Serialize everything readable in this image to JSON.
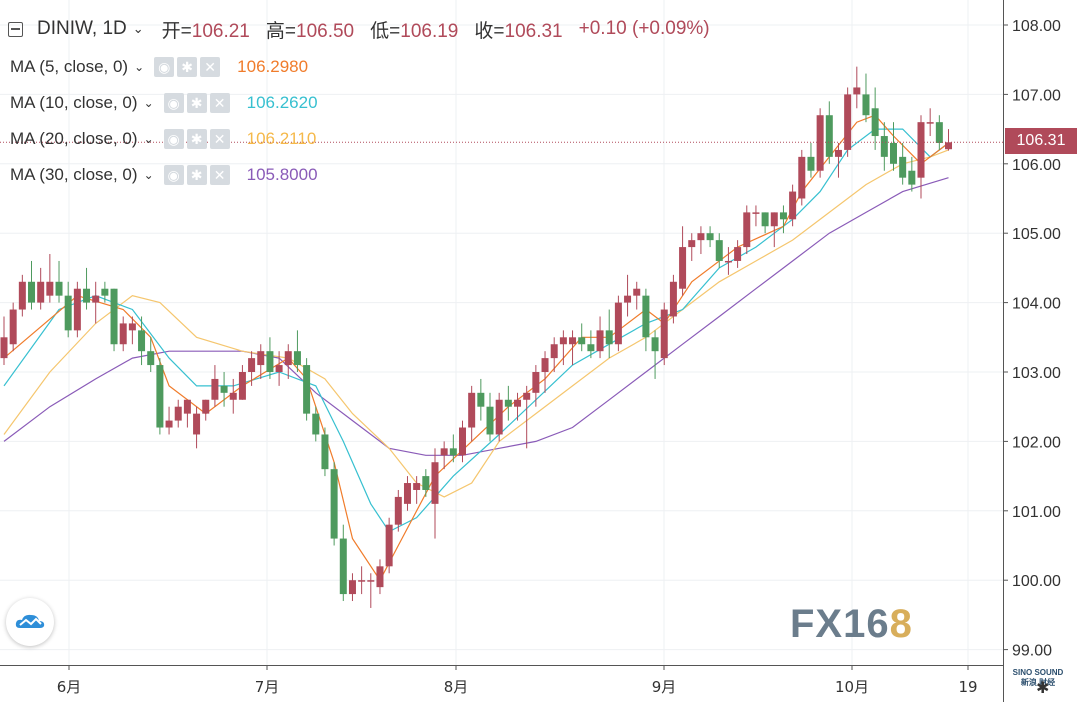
{
  "header": {
    "symbol": "DINIW, 1D",
    "open_label": "开",
    "open_value": "106.21",
    "high_label": "高",
    "high_value": "106.50",
    "low_label": "低",
    "low_value": "106.19",
    "close_label": "收",
    "close_value": "106.31",
    "change": "+0.10 (+0.09%)"
  },
  "indicators": [
    {
      "label": "MA (5, close, 0)",
      "value": "106.2980",
      "color": "#f07c2b"
    },
    {
      "label": "MA (10, close, 0)",
      "value": "106.2620",
      "color": "#37c0d0"
    },
    {
      "label": "MA (20, close, 0)",
      "value": "106.2110",
      "color": "#f5c66e"
    },
    {
      "label": "MA (30, close, 0)",
      "value": "105.8000",
      "color": "#8a5bb8"
    }
  ],
  "last_price_badge": "106.31",
  "watermark": {
    "main": "FX16",
    "accent": "8"
  },
  "corner_logo_text": [
    "SINO SOUND",
    "新浪 财经"
  ],
  "colors": {
    "up": "#b04a5a",
    "down": "#4e9a5e",
    "grid": "#eef0f3",
    "axis": "#555555"
  },
  "chart_data": {
    "type": "candlestick",
    "ylim": [
      98.85,
      108.3
    ],
    "yticks": [
      "108.00",
      "107.00",
      "106.00",
      "105.00",
      "104.00",
      "103.00",
      "102.00",
      "101.00",
      "100.00",
      "99.00"
    ],
    "xticks": [
      "6月",
      "7月",
      "8月",
      "9月",
      "10月",
      "19"
    ],
    "grid": true,
    "candles": [
      {
        "o": 103.2,
        "h": 103.8,
        "l": 103.1,
        "c": 103.5
      },
      {
        "o": 103.4,
        "h": 104.0,
        "l": 103.3,
        "c": 103.9
      },
      {
        "o": 103.9,
        "h": 104.4,
        "l": 103.8,
        "c": 104.3
      },
      {
        "o": 104.3,
        "h": 104.6,
        "l": 103.9,
        "c": 104.0
      },
      {
        "o": 104.0,
        "h": 104.5,
        "l": 103.9,
        "c": 104.3
      },
      {
        "o": 104.1,
        "h": 104.7,
        "l": 104.0,
        "c": 104.3
      },
      {
        "o": 104.3,
        "h": 104.6,
        "l": 104.0,
        "c": 104.1
      },
      {
        "o": 104.1,
        "h": 104.3,
        "l": 103.5,
        "c": 103.6
      },
      {
        "o": 103.6,
        "h": 104.3,
        "l": 103.5,
        "c": 104.2
      },
      {
        "o": 104.2,
        "h": 104.5,
        "l": 103.9,
        "c": 104.0
      },
      {
        "o": 104.0,
        "h": 104.3,
        "l": 103.7,
        "c": 104.1
      },
      {
        "o": 104.2,
        "h": 104.3,
        "l": 104.0,
        "c": 104.1
      },
      {
        "o": 104.2,
        "h": 104.2,
        "l": 103.3,
        "c": 103.4
      },
      {
        "o": 103.4,
        "h": 103.8,
        "l": 103.3,
        "c": 103.7
      },
      {
        "o": 103.6,
        "h": 103.8,
        "l": 103.4,
        "c": 103.7
      },
      {
        "o": 103.6,
        "h": 103.8,
        "l": 103.1,
        "c": 103.3
      },
      {
        "o": 103.3,
        "h": 103.5,
        "l": 103.0,
        "c": 103.1
      },
      {
        "o": 103.1,
        "h": 103.2,
        "l": 102.1,
        "c": 102.2
      },
      {
        "o": 102.2,
        "h": 102.5,
        "l": 102.1,
        "c": 102.3
      },
      {
        "o": 102.3,
        "h": 102.6,
        "l": 102.2,
        "c": 102.5
      },
      {
        "o": 102.4,
        "h": 102.6,
        "l": 102.2,
        "c": 102.6
      },
      {
        "o": 102.1,
        "h": 102.5,
        "l": 101.9,
        "c": 102.4
      },
      {
        "o": 102.4,
        "h": 102.6,
        "l": 102.3,
        "c": 102.6
      },
      {
        "o": 102.6,
        "h": 103.1,
        "l": 102.5,
        "c": 102.9
      },
      {
        "o": 102.8,
        "h": 103.0,
        "l": 102.5,
        "c": 102.7
      },
      {
        "o": 102.6,
        "h": 102.9,
        "l": 102.4,
        "c": 102.7
      },
      {
        "o": 102.6,
        "h": 103.1,
        "l": 102.6,
        "c": 103.0
      },
      {
        "o": 103.0,
        "h": 103.3,
        "l": 102.8,
        "c": 103.2
      },
      {
        "o": 103.1,
        "h": 103.4,
        "l": 102.9,
        "c": 103.3
      },
      {
        "o": 103.3,
        "h": 103.5,
        "l": 102.9,
        "c": 103.0
      },
      {
        "o": 103.0,
        "h": 103.3,
        "l": 102.8,
        "c": 103.1
      },
      {
        "o": 103.1,
        "h": 103.4,
        "l": 102.9,
        "c": 103.3
      },
      {
        "o": 103.3,
        "h": 103.6,
        "l": 103.0,
        "c": 103.1
      },
      {
        "o": 103.1,
        "h": 103.2,
        "l": 102.3,
        "c": 102.4
      },
      {
        "o": 102.4,
        "h": 102.5,
        "l": 102.0,
        "c": 102.1
      },
      {
        "o": 102.1,
        "h": 102.2,
        "l": 101.5,
        "c": 101.6
      },
      {
        "o": 101.6,
        "h": 101.7,
        "l": 100.5,
        "c": 100.6
      },
      {
        "o": 100.6,
        "h": 100.8,
        "l": 99.7,
        "c": 99.8
      },
      {
        "o": 99.8,
        "h": 100.1,
        "l": 99.7,
        "c": 100.0
      },
      {
        "o": 100.0,
        "h": 100.2,
        "l": 99.8,
        "c": 100.0
      },
      {
        "o": 100.0,
        "h": 100.1,
        "l": 99.6,
        "c": 100.0
      },
      {
        "o": 99.9,
        "h": 100.3,
        "l": 99.8,
        "c": 100.2
      },
      {
        "o": 100.2,
        "h": 100.9,
        "l": 100.1,
        "c": 100.8
      },
      {
        "o": 100.8,
        "h": 101.3,
        "l": 100.7,
        "c": 101.2
      },
      {
        "o": 101.1,
        "h": 101.5,
        "l": 101.0,
        "c": 101.4
      },
      {
        "o": 101.3,
        "h": 101.5,
        "l": 101.1,
        "c": 101.4
      },
      {
        "o": 101.5,
        "h": 101.6,
        "l": 101.2,
        "c": 101.3
      },
      {
        "o": 101.1,
        "h": 101.9,
        "l": 100.6,
        "c": 101.7
      },
      {
        "o": 101.8,
        "h": 102.0,
        "l": 101.6,
        "c": 101.9
      },
      {
        "o": 101.9,
        "h": 102.1,
        "l": 101.7,
        "c": 101.8
      },
      {
        "o": 101.8,
        "h": 102.3,
        "l": 101.7,
        "c": 102.2
      },
      {
        "o": 102.2,
        "h": 102.8,
        "l": 102.0,
        "c": 102.7
      },
      {
        "o": 102.7,
        "h": 102.9,
        "l": 102.3,
        "c": 102.5
      },
      {
        "o": 102.5,
        "h": 102.7,
        "l": 102.0,
        "c": 102.1
      },
      {
        "o": 102.1,
        "h": 102.7,
        "l": 102.0,
        "c": 102.6
      },
      {
        "o": 102.6,
        "h": 102.8,
        "l": 102.3,
        "c": 102.5
      },
      {
        "o": 102.5,
        "h": 102.7,
        "l": 102.3,
        "c": 102.6
      },
      {
        "o": 102.6,
        "h": 102.8,
        "l": 101.9,
        "c": 102.7
      },
      {
        "o": 102.7,
        "h": 103.1,
        "l": 102.5,
        "c": 103.0
      },
      {
        "o": 103.0,
        "h": 103.3,
        "l": 102.7,
        "c": 103.2
      },
      {
        "o": 103.2,
        "h": 103.5,
        "l": 103.0,
        "c": 103.4
      },
      {
        "o": 103.4,
        "h": 103.6,
        "l": 103.1,
        "c": 103.5
      },
      {
        "o": 103.4,
        "h": 103.6,
        "l": 103.1,
        "c": 103.5
      },
      {
        "o": 103.5,
        "h": 103.7,
        "l": 103.3,
        "c": 103.4
      },
      {
        "o": 103.4,
        "h": 103.6,
        "l": 103.2,
        "c": 103.3
      },
      {
        "o": 103.3,
        "h": 103.8,
        "l": 103.2,
        "c": 103.6
      },
      {
        "o": 103.6,
        "h": 103.9,
        "l": 103.2,
        "c": 103.4
      },
      {
        "o": 103.4,
        "h": 104.1,
        "l": 103.3,
        "c": 104.0
      },
      {
        "o": 104.0,
        "h": 104.4,
        "l": 103.8,
        "c": 104.1
      },
      {
        "o": 104.1,
        "h": 104.3,
        "l": 103.9,
        "c": 104.2
      },
      {
        "o": 104.1,
        "h": 104.2,
        "l": 103.3,
        "c": 103.5
      },
      {
        "o": 103.5,
        "h": 103.6,
        "l": 102.9,
        "c": 103.3
      },
      {
        "o": 103.2,
        "h": 104.0,
        "l": 103.1,
        "c": 103.9
      },
      {
        "o": 103.8,
        "h": 104.4,
        "l": 103.7,
        "c": 104.3
      },
      {
        "o": 104.2,
        "h": 105.1,
        "l": 104.1,
        "c": 104.8
      },
      {
        "o": 104.8,
        "h": 105.0,
        "l": 104.6,
        "c": 104.9
      },
      {
        "o": 104.9,
        "h": 105.1,
        "l": 104.7,
        "c": 105.0
      },
      {
        "o": 105.0,
        "h": 105.1,
        "l": 104.8,
        "c": 104.9
      },
      {
        "o": 104.9,
        "h": 105.0,
        "l": 104.5,
        "c": 104.6
      },
      {
        "o": 104.6,
        "h": 104.8,
        "l": 104.4,
        "c": 104.6
      },
      {
        "o": 104.6,
        "h": 104.9,
        "l": 104.5,
        "c": 104.8
      },
      {
        "o": 104.8,
        "h": 105.4,
        "l": 104.7,
        "c": 105.3
      },
      {
        "o": 105.3,
        "h": 105.4,
        "l": 105.1,
        "c": 105.3
      },
      {
        "o": 105.3,
        "h": 105.3,
        "l": 105.0,
        "c": 105.1
      },
      {
        "o": 105.1,
        "h": 105.3,
        "l": 104.8,
        "c": 105.3
      },
      {
        "o": 105.3,
        "h": 105.4,
        "l": 105.0,
        "c": 105.2
      },
      {
        "o": 105.2,
        "h": 105.7,
        "l": 105.1,
        "c": 105.6
      },
      {
        "o": 105.5,
        "h": 106.2,
        "l": 105.4,
        "c": 106.1
      },
      {
        "o": 106.1,
        "h": 106.3,
        "l": 105.8,
        "c": 105.9
      },
      {
        "o": 105.9,
        "h": 106.8,
        "l": 105.8,
        "c": 106.7
      },
      {
        "o": 106.7,
        "h": 106.9,
        "l": 106.0,
        "c": 106.1
      },
      {
        "o": 106.1,
        "h": 106.3,
        "l": 105.8,
        "c": 106.2
      },
      {
        "o": 106.2,
        "h": 107.1,
        "l": 106.1,
        "c": 107.0
      },
      {
        "o": 107.0,
        "h": 107.4,
        "l": 106.8,
        "c": 107.1
      },
      {
        "o": 107.0,
        "h": 107.3,
        "l": 106.6,
        "c": 106.7
      },
      {
        "o": 106.8,
        "h": 107.1,
        "l": 106.2,
        "c": 106.4
      },
      {
        "o": 106.4,
        "h": 106.6,
        "l": 105.9,
        "c": 106.1
      },
      {
        "o": 106.3,
        "h": 106.6,
        "l": 105.9,
        "c": 106.0
      },
      {
        "o": 106.1,
        "h": 106.3,
        "l": 105.7,
        "c": 105.8
      },
      {
        "o": 105.9,
        "h": 106.1,
        "l": 105.6,
        "c": 105.7
      },
      {
        "o": 105.8,
        "h": 106.7,
        "l": 105.5,
        "c": 106.6
      },
      {
        "o": 106.6,
        "h": 106.8,
        "l": 106.4,
        "c": 106.6
      },
      {
        "o": 106.6,
        "h": 106.7,
        "l": 106.2,
        "c": 106.3
      },
      {
        "o": 106.21,
        "h": 106.5,
        "l": 106.19,
        "c": 106.31
      }
    ],
    "ma5": [
      [
        0,
        103.2
      ],
      [
        8,
        104.1
      ],
      [
        13,
        103.9
      ],
      [
        16,
        103.5
      ],
      [
        18,
        102.8
      ],
      [
        22,
        102.4
      ],
      [
        26,
        102.8
      ],
      [
        31,
        103.2
      ],
      [
        33,
        102.9
      ],
      [
        36,
        101.7
      ],
      [
        38,
        100.6
      ],
      [
        41,
        100.0
      ],
      [
        43,
        100.5
      ],
      [
        47,
        101.5
      ],
      [
        51,
        102.0
      ],
      [
        55,
        102.5
      ],
      [
        59,
        102.9
      ],
      [
        63,
        103.5
      ],
      [
        66,
        103.5
      ],
      [
        70,
        103.9
      ],
      [
        72,
        103.7
      ],
      [
        75,
        104.3
      ],
      [
        80,
        104.8
      ],
      [
        85,
        105.1
      ],
      [
        87,
        105.6
      ],
      [
        90,
        106.1
      ],
      [
        93,
        106.6
      ],
      [
        95,
        106.7
      ],
      [
        97,
        106.4
      ],
      [
        100,
        106.0
      ],
      [
        103,
        106.3
      ]
    ],
    "ma10": [
      [
        0,
        102.8
      ],
      [
        6,
        103.9
      ],
      [
        10,
        104.1
      ],
      [
        14,
        103.9
      ],
      [
        18,
        103.2
      ],
      [
        21,
        102.8
      ],
      [
        25,
        102.8
      ],
      [
        30,
        103.0
      ],
      [
        34,
        102.8
      ],
      [
        37,
        102.0
      ],
      [
        40,
        101.1
      ],
      [
        42,
        100.7
      ],
      [
        45,
        100.9
      ],
      [
        49,
        101.5
      ],
      [
        54,
        102.1
      ],
      [
        58,
        102.6
      ],
      [
        62,
        103.1
      ],
      [
        66,
        103.4
      ],
      [
        70,
        103.7
      ],
      [
        74,
        103.9
      ],
      [
        78,
        104.5
      ],
      [
        82,
        104.8
      ],
      [
        86,
        105.2
      ],
      [
        89,
        105.6
      ],
      [
        92,
        106.2
      ],
      [
        95,
        106.5
      ],
      [
        98,
        106.5
      ],
      [
        101,
        106.1
      ],
      [
        103,
        106.3
      ]
    ],
    "ma20": [
      [
        0,
        102.1
      ],
      [
        5,
        103.0
      ],
      [
        10,
        103.7
      ],
      [
        14,
        104.1
      ],
      [
        17,
        104.0
      ],
      [
        21,
        103.5
      ],
      [
        26,
        103.3
      ],
      [
        31,
        103.2
      ],
      [
        35,
        102.9
      ],
      [
        38,
        102.4
      ],
      [
        42,
        101.9
      ],
      [
        45,
        101.4
      ],
      [
        48,
        101.2
      ],
      [
        51,
        101.4
      ],
      [
        54,
        102.0
      ],
      [
        58,
        102.4
      ],
      [
        62,
        102.8
      ],
      [
        66,
        103.2
      ],
      [
        70,
        103.5
      ],
      [
        74,
        103.9
      ],
      [
        78,
        104.3
      ],
      [
        82,
        104.6
      ],
      [
        86,
        104.9
      ],
      [
        90,
        105.3
      ],
      [
        94,
        105.7
      ],
      [
        98,
        106.0
      ],
      [
        101,
        106.1
      ],
      [
        103,
        106.2
      ]
    ],
    "ma30": [
      [
        0,
        102.0
      ],
      [
        5,
        102.5
      ],
      [
        10,
        102.9
      ],
      [
        14,
        103.2
      ],
      [
        18,
        103.3
      ],
      [
        22,
        103.3
      ],
      [
        26,
        103.3
      ],
      [
        30,
        103.2
      ],
      [
        34,
        102.7
      ],
      [
        38,
        102.3
      ],
      [
        42,
        101.9
      ],
      [
        46,
        101.8
      ],
      [
        50,
        101.8
      ],
      [
        54,
        101.9
      ],
      [
        58,
        102.0
      ],
      [
        62,
        102.2
      ],
      [
        66,
        102.6
      ],
      [
        70,
        103.0
      ],
      [
        74,
        103.4
      ],
      [
        78,
        103.8
      ],
      [
        82,
        104.2
      ],
      [
        86,
        104.6
      ],
      [
        90,
        105.0
      ],
      [
        94,
        105.3
      ],
      [
        98,
        105.6
      ],
      [
        103,
        105.8
      ]
    ]
  }
}
